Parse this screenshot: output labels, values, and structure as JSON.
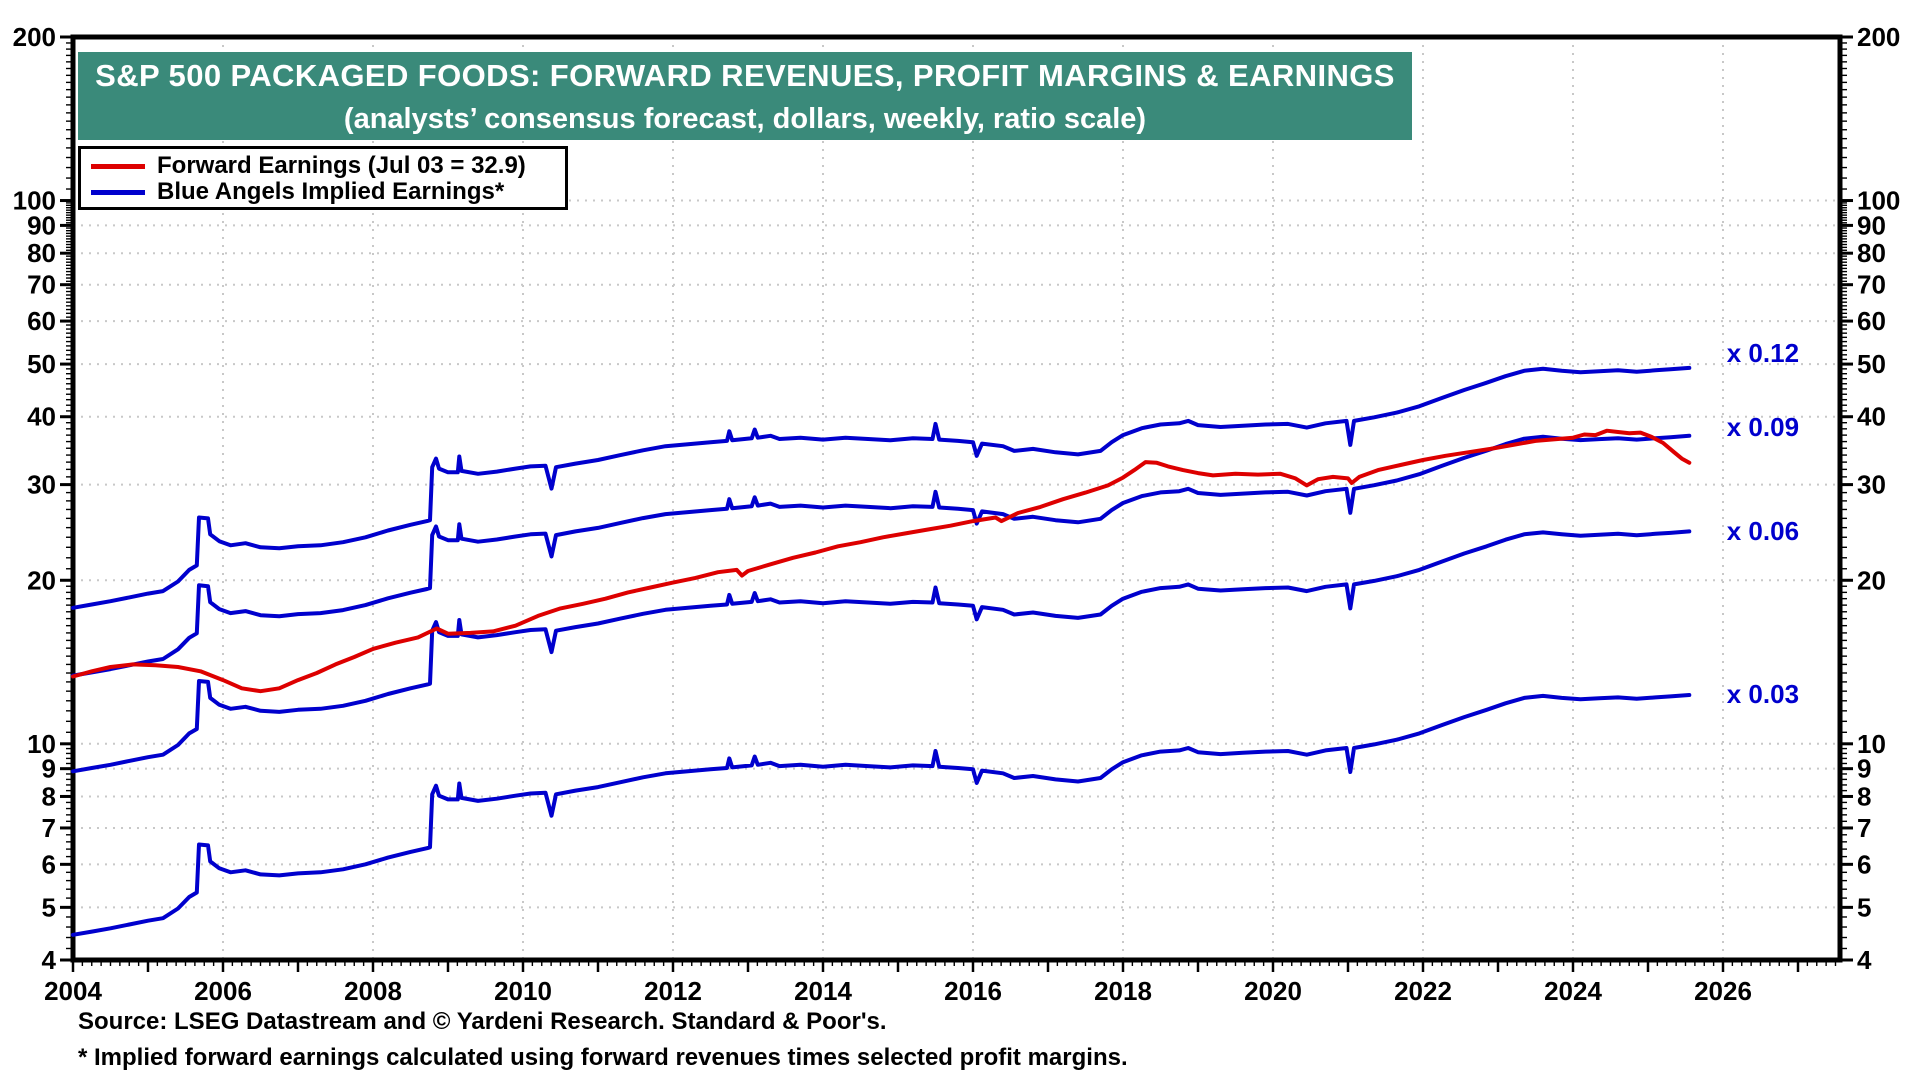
{
  "title": {
    "line1": "S&P 500 PACKAGED FOODS: FORWARD REVENUES, PROFIT MARGINS & EARNINGS",
    "line2": "(analysts’ consensus forecast, dollars, weekly, ratio scale)"
  },
  "legend": {
    "forward_earnings_label": "Forward Earnings (Jul 03 = 32.9)",
    "blue_angels_label": "Blue Angels Implied Earnings*"
  },
  "footer": {
    "source": "Source: LSEG Datastream and © Yardeni Research. Standard & Poor's.",
    "footnote": "* Implied forward earnings calculated using forward revenues times selected profit margins."
  },
  "colors": {
    "title_bar": "#3a8a7a",
    "red_line": "#dd0000",
    "blue_line": "#0000cd",
    "gridline": "#c8c8c8",
    "axis": "#000000",
    "background": "#ffffff"
  },
  "chart_data": {
    "type": "line",
    "title": "S&P 500 PACKAGED FOODS: FORWARD REVENUES, PROFIT MARGINS & EARNINGS",
    "subtitle": "(analysts’ consensus forecast, dollars, weekly, ratio scale)",
    "scale_y": "log",
    "x_range": [
      2004,
      2027.56
    ],
    "y_range": [
      4,
      200
    ],
    "x_labeled_ticks": [
      2004,
      2006,
      2008,
      2010,
      2012,
      2014,
      2016,
      2018,
      2020,
      2022,
      2024,
      2026
    ],
    "y_labeled_ticks": [
      200,
      100,
      90,
      80,
      70,
      60,
      50,
      40,
      30,
      20,
      10,
      9,
      8,
      7,
      6,
      5,
      4
    ],
    "gridlines_y": [
      5,
      6,
      7,
      8,
      9,
      10,
      20,
      30,
      40,
      50,
      60,
      70,
      80,
      90,
      100
    ],
    "gridlines_x": [
      2006,
      2008,
      2010,
      2012,
      2014,
      2016,
      2018,
      2020,
      2022,
      2024,
      2026
    ],
    "grid_on": true,
    "legend_position": "top-left",
    "annotations": [
      {
        "label": "x 0.12",
        "year": 2026.05,
        "value": 52.5
      },
      {
        "label": "x 0.09",
        "year": 2026.05,
        "value": 38.3
      },
      {
        "label": "x 0.06",
        "year": 2026.05,
        "value": 24.6
      },
      {
        "label": "x 0.03",
        "year": 2026.05,
        "value": 12.35
      }
    ],
    "blue_angels": {
      "name": "Blue Angels Implied Earnings (forward revenues times selected profit margins)",
      "multipliers": [
        0.12,
        0.09,
        0.06,
        0.03
      ],
      "base_multiplier": 0.12,
      "base_points": [
        [
          2004.0,
          17.8
        ],
        [
          2004.25,
          18.05
        ],
        [
          2004.5,
          18.3
        ],
        [
          2004.75,
          18.6
        ],
        [
          2005.0,
          18.9
        ],
        [
          2005.2,
          19.1
        ],
        [
          2005.4,
          19.9
        ],
        [
          2005.55,
          20.9
        ],
        [
          2005.65,
          21.3
        ],
        [
          2005.68,
          26.1
        ],
        [
          2005.8,
          26.0
        ],
        [
          2005.83,
          24.3
        ],
        [
          2005.95,
          23.6
        ],
        [
          2006.1,
          23.2
        ],
        [
          2006.3,
          23.4
        ],
        [
          2006.5,
          23.0
        ],
        [
          2006.75,
          22.9
        ],
        [
          2007.0,
          23.1
        ],
        [
          2007.3,
          23.2
        ],
        [
          2007.6,
          23.5
        ],
        [
          2007.9,
          24.0
        ],
        [
          2008.2,
          24.7
        ],
        [
          2008.5,
          25.3
        ],
        [
          2008.72,
          25.7
        ],
        [
          2008.76,
          25.8
        ],
        [
          2008.79,
          32.3
        ],
        [
          2008.84,
          33.5
        ],
        [
          2008.88,
          32.1
        ],
        [
          2009.0,
          31.6
        ],
        [
          2009.13,
          31.6
        ],
        [
          2009.15,
          33.8
        ],
        [
          2009.18,
          31.8
        ],
        [
          2009.4,
          31.4
        ],
        [
          2009.65,
          31.7
        ],
        [
          2009.9,
          32.1
        ],
        [
          2010.1,
          32.4
        ],
        [
          2010.3,
          32.5
        ],
        [
          2010.38,
          29.5
        ],
        [
          2010.44,
          32.3
        ],
        [
          2010.7,
          32.8
        ],
        [
          2011.0,
          33.3
        ],
        [
          2011.3,
          34.0
        ],
        [
          2011.6,
          34.7
        ],
        [
          2011.9,
          35.3
        ],
        [
          2012.2,
          35.6
        ],
        [
          2012.5,
          35.9
        ],
        [
          2012.72,
          36.1
        ],
        [
          2012.75,
          37.6
        ],
        [
          2012.79,
          36.2
        ],
        [
          2013.05,
          36.5
        ],
        [
          2013.09,
          37.9
        ],
        [
          2013.13,
          36.6
        ],
        [
          2013.3,
          36.9
        ],
        [
          2013.42,
          36.4
        ],
        [
          2013.7,
          36.6
        ],
        [
          2014.0,
          36.3
        ],
        [
          2014.3,
          36.6
        ],
        [
          2014.6,
          36.4
        ],
        [
          2014.9,
          36.2
        ],
        [
          2015.2,
          36.5
        ],
        [
          2015.46,
          36.4
        ],
        [
          2015.5,
          38.8
        ],
        [
          2015.55,
          36.3
        ],
        [
          2015.8,
          36.1
        ],
        [
          2016.0,
          35.9
        ],
        [
          2016.05,
          33.9
        ],
        [
          2016.12,
          35.7
        ],
        [
          2016.4,
          35.3
        ],
        [
          2016.55,
          34.6
        ],
        [
          2016.8,
          34.9
        ],
        [
          2017.1,
          34.4
        ],
        [
          2017.4,
          34.1
        ],
        [
          2017.7,
          34.6
        ],
        [
          2017.85,
          35.9
        ],
        [
          2018.0,
          37.0
        ],
        [
          2018.25,
          38.1
        ],
        [
          2018.5,
          38.7
        ],
        [
          2018.75,
          38.9
        ],
        [
          2018.87,
          39.3
        ],
        [
          2019.0,
          38.6
        ],
        [
          2019.3,
          38.3
        ],
        [
          2019.6,
          38.5
        ],
        [
          2019.9,
          38.7
        ],
        [
          2020.2,
          38.8
        ],
        [
          2020.45,
          38.2
        ],
        [
          2020.7,
          38.9
        ],
        [
          2020.98,
          39.3
        ],
        [
          2021.03,
          35.5
        ],
        [
          2021.08,
          39.3
        ],
        [
          2021.35,
          39.9
        ],
        [
          2021.65,
          40.7
        ],
        [
          2021.95,
          41.8
        ],
        [
          2022.25,
          43.3
        ],
        [
          2022.55,
          44.8
        ],
        [
          2022.85,
          46.2
        ],
        [
          2023.1,
          47.5
        ],
        [
          2023.35,
          48.6
        ],
        [
          2023.6,
          49.0
        ],
        [
          2023.85,
          48.6
        ],
        [
          2024.1,
          48.3
        ],
        [
          2024.35,
          48.5
        ],
        [
          2024.6,
          48.7
        ],
        [
          2024.85,
          48.4
        ],
        [
          2025.1,
          48.7
        ],
        [
          2025.3,
          48.9
        ],
        [
          2025.55,
          49.2
        ]
      ]
    },
    "forward_earnings": {
      "name": "Forward Earnings (Jul 03 = 32.9)",
      "points": [
        [
          2004.0,
          13.3
        ],
        [
          2004.25,
          13.6
        ],
        [
          2004.5,
          13.85
        ],
        [
          2004.8,
          14.0
        ],
        [
          2005.1,
          13.95
        ],
        [
          2005.4,
          13.85
        ],
        [
          2005.7,
          13.6
        ],
        [
          2006.0,
          13.1
        ],
        [
          2006.25,
          12.65
        ],
        [
          2006.5,
          12.5
        ],
        [
          2006.75,
          12.65
        ],
        [
          2007.0,
          13.1
        ],
        [
          2007.25,
          13.5
        ],
        [
          2007.5,
          14.0
        ],
        [
          2007.75,
          14.45
        ],
        [
          2008.0,
          14.95
        ],
        [
          2008.3,
          15.35
        ],
        [
          2008.6,
          15.7
        ],
        [
          2008.85,
          16.3
        ],
        [
          2009.0,
          15.95
        ],
        [
          2009.3,
          16.0
        ],
        [
          2009.6,
          16.1
        ],
        [
          2009.9,
          16.5
        ],
        [
          2010.2,
          17.2
        ],
        [
          2010.5,
          17.75
        ],
        [
          2010.8,
          18.1
        ],
        [
          2011.1,
          18.5
        ],
        [
          2011.4,
          19.0
        ],
        [
          2011.7,
          19.4
        ],
        [
          2012.0,
          19.8
        ],
        [
          2012.3,
          20.2
        ],
        [
          2012.6,
          20.7
        ],
        [
          2012.85,
          20.9
        ],
        [
          2012.92,
          20.4
        ],
        [
          2013.0,
          20.8
        ],
        [
          2013.3,
          21.4
        ],
        [
          2013.6,
          22.0
        ],
        [
          2013.9,
          22.5
        ],
        [
          2014.2,
          23.1
        ],
        [
          2014.5,
          23.5
        ],
        [
          2014.8,
          24.0
        ],
        [
          2015.1,
          24.4
        ],
        [
          2015.4,
          24.8
        ],
        [
          2015.7,
          25.2
        ],
        [
          2016.0,
          25.7
        ],
        [
          2016.3,
          26.1
        ],
        [
          2016.38,
          25.7
        ],
        [
          2016.6,
          26.6
        ],
        [
          2016.9,
          27.3
        ],
        [
          2017.2,
          28.2
        ],
        [
          2017.5,
          29.0
        ],
        [
          2017.8,
          29.9
        ],
        [
          2018.0,
          30.9
        ],
        [
          2018.15,
          31.9
        ],
        [
          2018.3,
          33.0
        ],
        [
          2018.45,
          32.9
        ],
        [
          2018.6,
          32.4
        ],
        [
          2018.8,
          31.9
        ],
        [
          2019.0,
          31.5
        ],
        [
          2019.2,
          31.2
        ],
        [
          2019.5,
          31.4
        ],
        [
          2019.8,
          31.3
        ],
        [
          2020.1,
          31.4
        ],
        [
          2020.3,
          30.8
        ],
        [
          2020.45,
          29.9
        ],
        [
          2020.6,
          30.7
        ],
        [
          2020.8,
          31.0
        ],
        [
          2021.0,
          30.8
        ],
        [
          2021.05,
          30.2
        ],
        [
          2021.15,
          31.0
        ],
        [
          2021.4,
          31.9
        ],
        [
          2021.7,
          32.6
        ],
        [
          2022.0,
          33.3
        ],
        [
          2022.3,
          33.9
        ],
        [
          2022.6,
          34.4
        ],
        [
          2022.9,
          34.9
        ],
        [
          2023.2,
          35.5
        ],
        [
          2023.5,
          36.1
        ],
        [
          2023.8,
          36.4
        ],
        [
          2024.0,
          36.6
        ],
        [
          2024.15,
          37.1
        ],
        [
          2024.3,
          37.0
        ],
        [
          2024.45,
          37.7
        ],
        [
          2024.6,
          37.5
        ],
        [
          2024.75,
          37.3
        ],
        [
          2024.9,
          37.4
        ],
        [
          2025.05,
          36.7
        ],
        [
          2025.2,
          35.8
        ],
        [
          2025.35,
          34.4
        ],
        [
          2025.45,
          33.5
        ],
        [
          2025.55,
          32.9
        ]
      ]
    }
  }
}
